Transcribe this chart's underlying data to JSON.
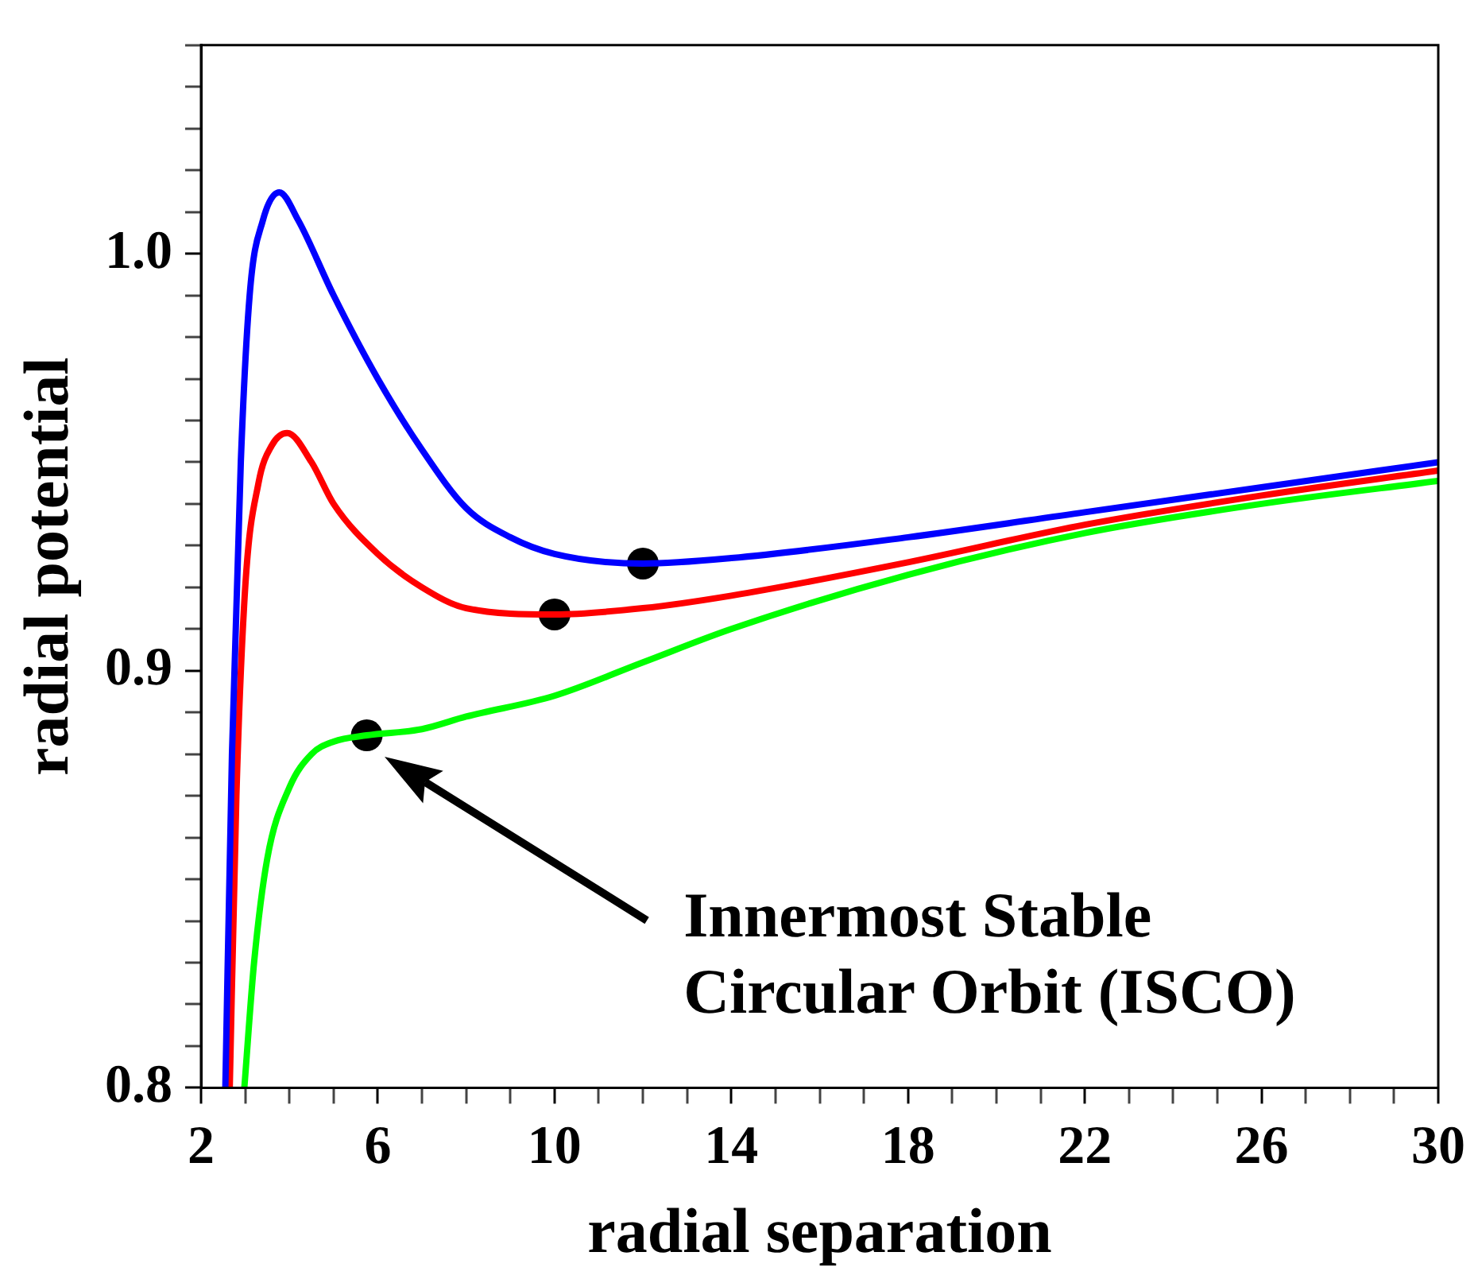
{
  "chart_data": {
    "type": "line",
    "xlabel": "radial separation",
    "ylabel": "radial potential",
    "xlim": [
      2,
      30
    ],
    "ylim": [
      0.8,
      1.05
    ],
    "xticks": [
      2,
      {
        "value": 3,
        "label": null
      },
      {
        "value": 4,
        "label": null
      },
      {
        "value": 5,
        "label": null
      },
      6,
      {
        "value": 7,
        "label": null
      },
      {
        "value": 8,
        "label": null
      },
      {
        "value": 9,
        "label": null
      },
      10,
      {
        "value": 11,
        "label": null
      },
      {
        "value": 12,
        "label": null
      },
      {
        "value": 13,
        "label": null
      },
      14,
      {
        "value": 15,
        "label": null
      },
      {
        "value": 16,
        "label": null
      },
      {
        "value": 17,
        "label": null
      },
      18,
      {
        "value": 19,
        "label": null
      },
      {
        "value": 20,
        "label": null
      },
      {
        "value": 21,
        "label": null
      },
      22,
      {
        "value": 23,
        "label": null
      },
      {
        "value": 24,
        "label": null
      },
      {
        "value": 25,
        "label": null
      },
      26,
      {
        "value": 27,
        "label": null
      },
      {
        "value": 28,
        "label": null
      },
      {
        "value": 29,
        "label": null
      },
      30
    ],
    "yticks": [
      0.8,
      {
        "value": 0.81,
        "label": null
      },
      {
        "value": 0.82,
        "label": null
      },
      {
        "value": 0.83,
        "label": null
      },
      {
        "value": 0.84,
        "label": null
      },
      {
        "value": 0.85,
        "label": null
      },
      {
        "value": 0.86,
        "label": null
      },
      {
        "value": 0.87,
        "label": null
      },
      {
        "value": 0.88,
        "label": null
      },
      {
        "value": 0.89,
        "label": null
      },
      0.9,
      {
        "value": 0.91,
        "label": null
      },
      {
        "value": 0.92,
        "label": null
      },
      {
        "value": 0.93,
        "label": null
      },
      {
        "value": 0.94,
        "label": null
      },
      {
        "value": 0.95,
        "label": null
      },
      {
        "value": 0.96,
        "label": null
      },
      {
        "value": 0.97,
        "label": null
      },
      {
        "value": 0.98,
        "label": null
      },
      {
        "value": 0.99,
        "label": null
      },
      {
        "value": 1,
        "label": "1.0"
      },
      {
        "value": 1.01,
        "label": null
      },
      {
        "value": 1.02,
        "label": null
      },
      {
        "value": 1.03,
        "label": null
      },
      {
        "value": 1.04,
        "label": null
      },
      {
        "value": 1.05,
        "label": null
      }
    ],
    "grid": false,
    "legend": false,
    "marker": "none",
    "line_style": "solid",
    "series": [
      {
        "color": "#0000ff",
        "x": [
          2.55,
          2.7,
          2.9,
          3.1,
          3.4,
          3.77,
          4.2,
          5,
          6,
          7,
          8,
          9,
          10,
          12,
          14,
          18,
          22,
          26,
          30
        ],
        "values": [
          0.8,
          0.88,
          0.95,
          0.99,
          1.008,
          1.0147,
          1.008,
          0.99,
          0.97,
          0.953,
          0.939,
          0.932,
          0.928,
          0.9257,
          0.927,
          0.932,
          0.938,
          0.944,
          0.95
        ]
      },
      {
        "color": "#ff0000",
        "x": [
          2.65,
          2.8,
          3.0,
          3.3,
          3.6,
          3.95,
          4.5,
          5,
          6,
          7,
          8,
          10,
          12,
          14,
          18,
          22,
          26,
          30
        ],
        "values": [
          0.8,
          0.87,
          0.92,
          0.945,
          0.954,
          0.957,
          0.95,
          0.94,
          0.928,
          0.92,
          0.915,
          0.9135,
          0.915,
          0.918,
          0.926,
          0.935,
          0.942,
          0.948
        ]
      },
      {
        "color": "#00ff00",
        "x": [
          2.98,
          3.2,
          3.5,
          4,
          4.5,
          5,
          5.75,
          7,
          8,
          10,
          12,
          14,
          18,
          22,
          26,
          30
        ],
        "values": [
          0.8,
          0.83,
          0.855,
          0.872,
          0.88,
          0.883,
          0.8845,
          0.886,
          0.889,
          0.894,
          0.902,
          0.91,
          0.923,
          0.933,
          0.94,
          0.9455
        ]
      },
      {
        "type": "scatter",
        "color": "#000000",
        "marker": "circle",
        "x": [
          12,
          10,
          5.75
        ],
        "values": [
          0.9257,
          0.9135,
          0.8845
        ]
      }
    ],
    "annotations": [
      "Innermost Stable\nCircular Orbit (ISCO)"
    ]
  }
}
